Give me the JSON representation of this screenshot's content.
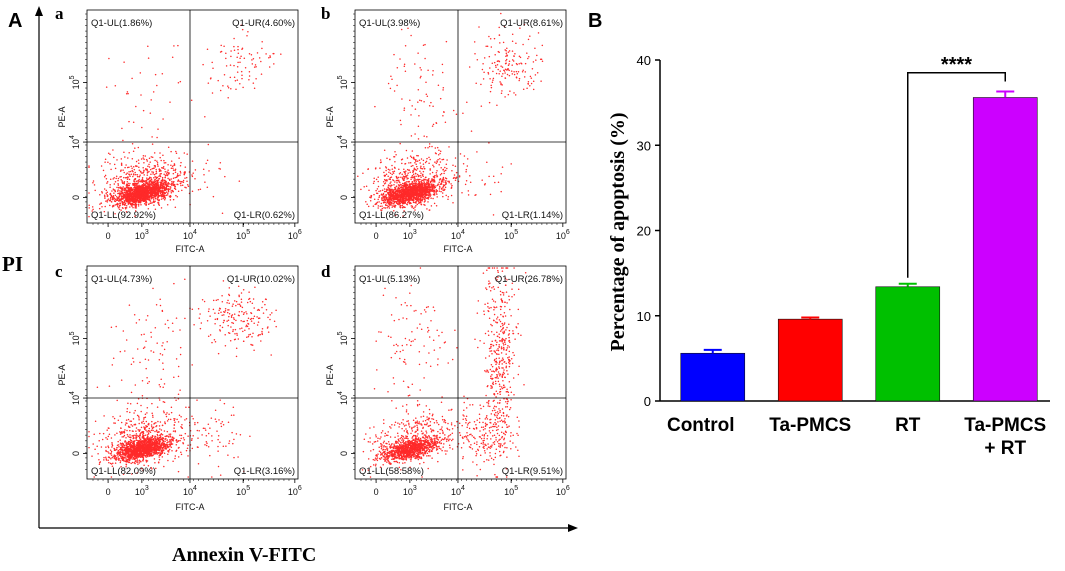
{
  "panel_a_label": "A",
  "panel_b_label": "B",
  "y_axis_title": "PI",
  "x_axis_title": "Annexin V-FITC",
  "chart_data": [
    {
      "type": "scatter",
      "title": "a",
      "xlabel": "FITC-A",
      "ylabel": "PE-A",
      "x_ticks": [
        "0",
        "10",
        "10",
        "10",
        "10"
      ],
      "x_tick_exps": [
        "",
        "3",
        "4",
        "5",
        "6"
      ],
      "y_ticks": [
        "0",
        "10",
        "10"
      ],
      "y_tick_exps": [
        "",
        "4",
        "5"
      ],
      "quadrants": {
        "UL": "Q1-UL(1.86%)",
        "UR": "Q1-UR(4.60%)",
        "LL": "Q1-LL(92.92%)",
        "LR": "Q1-LR(0.62%)"
      }
    },
    {
      "type": "scatter",
      "title": "b",
      "xlabel": "FITC-A",
      "ylabel": "PE-A",
      "x_ticks": [
        "0",
        "10",
        "10",
        "10",
        "10"
      ],
      "x_tick_exps": [
        "",
        "3",
        "4",
        "5",
        "6"
      ],
      "y_ticks": [
        "0",
        "10",
        "10"
      ],
      "y_tick_exps": [
        "",
        "4",
        "5"
      ],
      "quadrants": {
        "UL": "Q1-UL(3.98%)",
        "UR": "Q1-UR(8.61%)",
        "LL": "Q1-LL(86.27%)",
        "LR": "Q1-LR(1.14%)"
      }
    },
    {
      "type": "scatter",
      "title": "c",
      "xlabel": "FITC-A",
      "ylabel": "PE-A",
      "x_ticks": [
        "0",
        "10",
        "10",
        "10",
        "10"
      ],
      "x_tick_exps": [
        "",
        "3",
        "4",
        "5",
        "6"
      ],
      "y_ticks": [
        "0",
        "10",
        "10"
      ],
      "y_tick_exps": [
        "",
        "4",
        "5"
      ],
      "quadrants": {
        "UL": "Q1-UL(4.73%)",
        "UR": "Q1-UR(10.02%)",
        "LL": "Q1-LL(82.09%)",
        "LR": "Q1-LR(3.16%)"
      }
    },
    {
      "type": "scatter",
      "title": "d",
      "xlabel": "FITC-A",
      "ylabel": "PE-A",
      "x_ticks": [
        "0",
        "10",
        "10",
        "10",
        "10"
      ],
      "x_tick_exps": [
        "",
        "3",
        "4",
        "5",
        "6"
      ],
      "y_ticks": [
        "0",
        "10",
        "10"
      ],
      "y_tick_exps": [
        "",
        "4",
        "5"
      ],
      "quadrants": {
        "UL": "Q1-UL(5.13%)",
        "UR": "Q1-UR(26.78%)",
        "LL": "Q1-LL(58.58%)",
        "LR": "Q1-LR(9.51%)"
      }
    },
    {
      "type": "bar",
      "title": "",
      "xlabel": "",
      "ylabel": "Percentage of apoptosis (%)",
      "categories": [
        "Control",
        "Ta-PMCS",
        "RT",
        "Ta-PMCS + RT"
      ],
      "category_lines": [
        [
          "Control"
        ],
        [
          "Ta-PMCS"
        ],
        [
          "RT"
        ],
        [
          "Ta-PMCS",
          "+ RT"
        ]
      ],
      "values": [
        5.6,
        9.6,
        13.4,
        35.6
      ],
      "errors": [
        0.4,
        0.2,
        0.35,
        0.7
      ],
      "colors": [
        "#0000ff",
        "#ff0000",
        "#00c000",
        "#cc00ff"
      ],
      "ylim": [
        0,
        40
      ],
      "y_ticks": [
        "0",
        "10",
        "20",
        "30",
        "40"
      ],
      "significance": {
        "from": "RT",
        "to": "Ta-PMCS + RT",
        "label": "****"
      }
    }
  ]
}
